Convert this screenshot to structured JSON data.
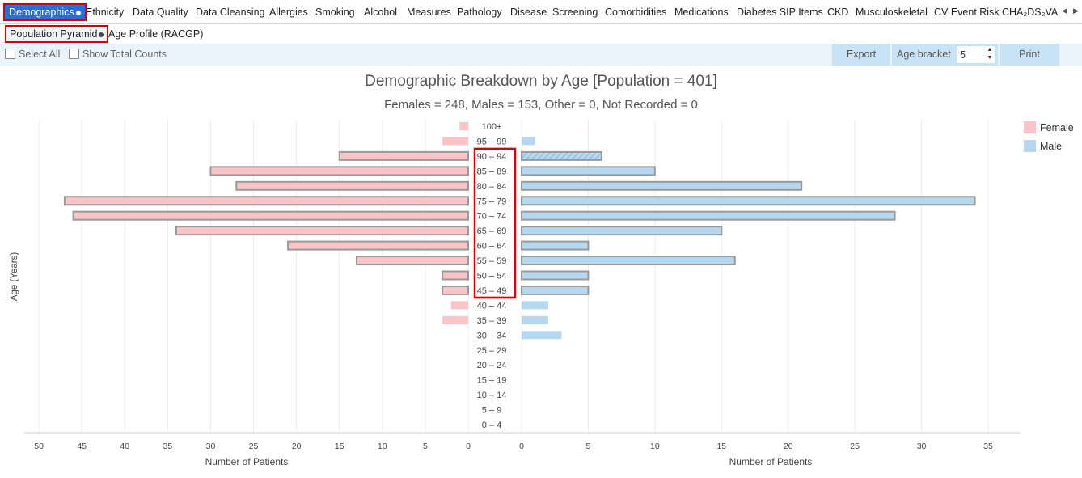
{
  "tabs": [
    {
      "label": "Demographics",
      "active": true
    },
    {
      "label": "Ethnicity"
    },
    {
      "label": "Data Quality"
    },
    {
      "label": "Data Cleansing"
    },
    {
      "label": "Allergies"
    },
    {
      "label": "Smoking"
    },
    {
      "label": "Alcohol"
    },
    {
      "label": "Measures"
    },
    {
      "label": "Pathology"
    },
    {
      "label": "Disease"
    },
    {
      "label": "Screening"
    },
    {
      "label": "Comorbidities"
    },
    {
      "label": "Medications"
    },
    {
      "label": "Diabetes SIP Items"
    },
    {
      "label": "CKD"
    },
    {
      "label": "Musculoskeletal"
    },
    {
      "label": "CV Event Risk"
    },
    {
      "label": "CHA₂DS₂VA"
    }
  ],
  "subtabs": [
    {
      "label": "Population Pyramid",
      "active": true
    },
    {
      "label": "Age Profile (RACGP)"
    }
  ],
  "toolbar": {
    "select_all": "Select All",
    "show_total_counts": "Show Total Counts",
    "export": "Export",
    "age_bracket_label": "Age bracket",
    "age_bracket_value": "5",
    "print": "Print"
  },
  "icons": {
    "scroll_left": "triangle-left-icon",
    "scroll_right": "triangle-right-icon"
  },
  "colors": {
    "female": "#f9c4c8",
    "male": "#b5d7ef",
    "highlight": "#e00000",
    "active_tab": "#2a6fd6"
  },
  "chart_data": {
    "type": "bar",
    "title": "Demographic Breakdown by Age [Population = 401]",
    "subtitle": "Females = 248, Males = 153, Other = 0, Not Recorded = 0",
    "ylabel": "Age (Years)",
    "xlabel_left": "Number of Patients",
    "xlabel_right": "Number of Patients",
    "categories": [
      "100+",
      "95 – 99",
      "90 – 94",
      "85 – 89",
      "80 – 84",
      "75 – 79",
      "70 – 74",
      "65 – 69",
      "60 – 64",
      "55 – 59",
      "50 – 54",
      "45 – 49",
      "40 – 44",
      "35 – 39",
      "30 – 34",
      "25 – 29",
      "20 – 24",
      "15 – 19",
      "10 – 14",
      "5 – 9",
      "0 – 4"
    ],
    "series": [
      {
        "name": "Female",
        "values": [
          1,
          3,
          15,
          30,
          27,
          47,
          46,
          34,
          21,
          13,
          3,
          3,
          2,
          3,
          0,
          0,
          0,
          0,
          0,
          0,
          0
        ]
      },
      {
        "name": "Male",
        "values": [
          0,
          1,
          6,
          10,
          21,
          34,
          28,
          15,
          5,
          16,
          5,
          5,
          2,
          2,
          3,
          0,
          0,
          0,
          0,
          0,
          0
        ]
      }
    ],
    "outlined_categories": [
      "90 – 94",
      "85 – 89",
      "80 – 84",
      "75 – 79",
      "70 – 74",
      "65 – 69",
      "60 – 64",
      "55 – 59",
      "50 – 54",
      "45 – 49"
    ],
    "hatched": {
      "series": "Male",
      "category": "90 – 94"
    },
    "xlim_left": [
      0,
      50
    ],
    "xlim_right": [
      0,
      35
    ],
    "xticks_left": [
      50,
      45,
      40,
      35,
      30,
      25,
      20,
      15,
      10,
      5,
      0
    ],
    "xticks_right": [
      0,
      5,
      10,
      15,
      20,
      25,
      30,
      35
    ],
    "legend_position": "top-right",
    "grid": true
  }
}
